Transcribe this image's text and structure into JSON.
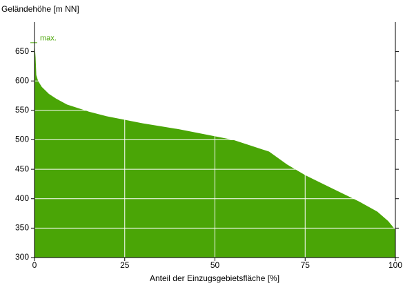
{
  "chart_data": {
    "type": "area",
    "y_label": "Geländehöhe [m NN]",
    "x_label": "Anteil der Einzugsgebietsfläche [%]",
    "annotation": "max.",
    "x": [
      0,
      0.3,
      0.5,
      1,
      2,
      4,
      6,
      9,
      15,
      20,
      25,
      30,
      35,
      40,
      45,
      50,
      55,
      60,
      65,
      70,
      75,
      80,
      85,
      90,
      95,
      98,
      100
    ],
    "values": [
      665,
      640,
      610,
      600,
      590,
      578,
      570,
      560,
      548,
      540,
      534,
      528,
      523,
      518,
      512,
      506,
      500,
      490,
      480,
      458,
      440,
      425,
      410,
      395,
      378,
      362,
      347
    ],
    "color": "#4aa506",
    "xlim": [
      0,
      100
    ],
    "ylim": [
      300,
      700
    ],
    "xticks": [
      0,
      25,
      50,
      75,
      100
    ],
    "yticks": [
      300,
      350,
      400,
      450,
      500,
      550,
      600,
      650
    ],
    "grid": true
  }
}
